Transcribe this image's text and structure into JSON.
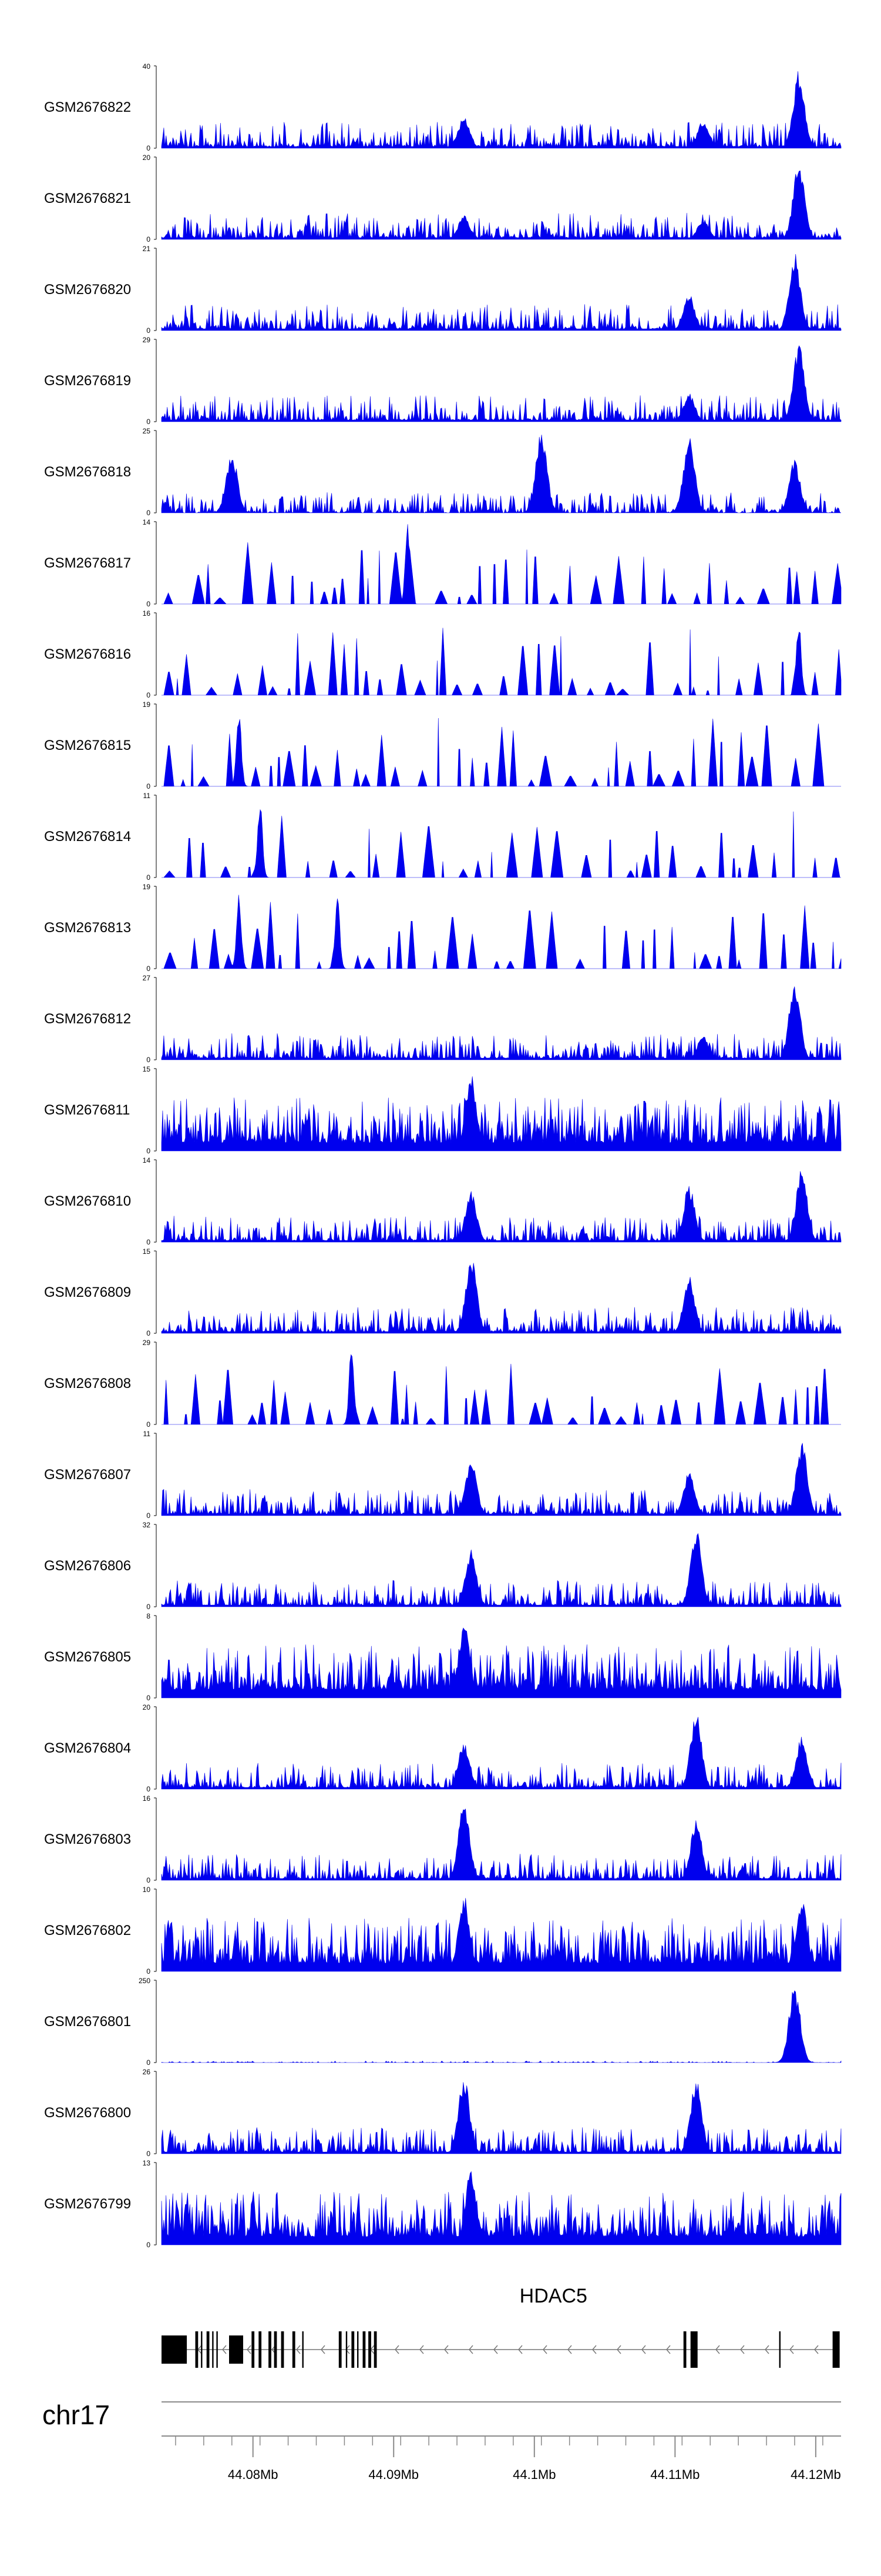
{
  "chart_data": {
    "type": "area",
    "title": "",
    "chromosome": "chr17",
    "x_range_mb": [
      44.0735,
      44.1218
    ],
    "fill_color": "#0000ee",
    "tracks": [
      {
        "name": "GSM2676822",
        "ymax": "40",
        "ymin": "0",
        "pattern": "dense",
        "peaks": [
          [
            44.095,
            0.4
          ],
          [
            44.112,
            0.35
          ],
          [
            44.1188,
            0.95
          ]
        ]
      },
      {
        "name": "GSM2676821",
        "ymax": "20",
        "ymin": "0",
        "pattern": "dense",
        "peaks": [
          [
            44.095,
            0.3
          ],
          [
            44.112,
            0.25
          ],
          [
            44.1188,
            0.95
          ]
        ]
      },
      {
        "name": "GSM2676820",
        "ymax": "21",
        "ymin": "0",
        "pattern": "dense",
        "peaks": [
          [
            44.111,
            0.45
          ],
          [
            44.1185,
            0.95
          ]
        ]
      },
      {
        "name": "GSM2676819",
        "ymax": "29",
        "ymin": "0",
        "pattern": "dense",
        "peaks": [
          [
            44.111,
            0.35
          ],
          [
            44.1188,
            0.95
          ]
        ]
      },
      {
        "name": "GSM2676818",
        "ymax": "25",
        "ymin": "0",
        "pattern": "mixed",
        "peaks": [
          [
            44.0785,
            0.75
          ],
          [
            44.1005,
            1.0
          ],
          [
            44.111,
            0.95
          ],
          [
            44.1185,
            0.65
          ]
        ]
      },
      {
        "name": "GSM2676817",
        "ymax": "14",
        "ymin": "0",
        "pattern": "sparse",
        "peaks": [
          [
            44.091,
            1.0
          ]
        ]
      },
      {
        "name": "GSM2676816",
        "ymax": "16",
        "ymin": "0",
        "pattern": "sparse",
        "peaks": [
          [
            44.1188,
            0.95
          ]
        ]
      },
      {
        "name": "GSM2676815",
        "ymax": "19",
        "ymin": "0",
        "pattern": "sparse",
        "peaks": [
          [
            44.079,
            0.95
          ]
        ]
      },
      {
        "name": "GSM2676814",
        "ymax": "11",
        "ymin": "0",
        "pattern": "sparse",
        "peaks": [
          [
            44.0805,
            0.95
          ]
        ]
      },
      {
        "name": "GSM2676813",
        "ymax": "19",
        "ymin": "0",
        "pattern": "sparse",
        "peaks": [
          [
            44.079,
            0.95
          ],
          [
            44.086,
            0.95
          ]
        ]
      },
      {
        "name": "GSM2676812",
        "ymax": "27",
        "ymin": "0",
        "pattern": "dense",
        "peaks": [
          [
            44.112,
            0.3
          ],
          [
            44.1185,
            0.95
          ]
        ]
      },
      {
        "name": "GSM2676811",
        "ymax": "15",
        "ymin": "0",
        "pattern": "busy",
        "peaks": [
          [
            44.0955,
            0.95
          ]
        ]
      },
      {
        "name": "GSM2676810",
        "ymax": "14",
        "ymin": "0",
        "pattern": "dense",
        "peaks": [
          [
            44.0955,
            0.65
          ],
          [
            44.111,
            0.7
          ],
          [
            44.119,
            0.9
          ]
        ]
      },
      {
        "name": "GSM2676809",
        "ymax": "15",
        "ymin": "0",
        "pattern": "dense",
        "peaks": [
          [
            44.0955,
            0.95
          ],
          [
            44.111,
            0.7
          ]
        ]
      },
      {
        "name": "GSM2676808",
        "ymax": "29",
        "ymin": "0",
        "pattern": "sparse",
        "peaks": [
          [
            44.087,
            0.95
          ]
        ]
      },
      {
        "name": "GSM2676807",
        "ymax": "11",
        "ymin": "0",
        "pattern": "dense",
        "peaks": [
          [
            44.0955,
            0.7
          ],
          [
            44.111,
            0.55
          ],
          [
            44.119,
            0.9
          ]
        ]
      },
      {
        "name": "GSM2676806",
        "ymax": "32",
        "ymin": "0",
        "pattern": "dense",
        "peaks": [
          [
            44.0955,
            0.7
          ],
          [
            44.1115,
            0.95
          ]
        ]
      },
      {
        "name": "GSM2676805",
        "ymax": "8",
        "ymin": "0",
        "pattern": "busy",
        "peaks": [
          [
            44.095,
            0.95
          ]
        ]
      },
      {
        "name": "GSM2676804",
        "ymax": "20",
        "ymin": "0",
        "pattern": "dense",
        "peaks": [
          [
            44.095,
            0.6
          ],
          [
            44.1115,
            0.95
          ],
          [
            44.119,
            0.65
          ]
        ]
      },
      {
        "name": "GSM2676803",
        "ymax": "16",
        "ymin": "0",
        "pattern": "dense",
        "peaks": [
          [
            44.095,
            0.95
          ],
          [
            44.1115,
            0.75
          ]
        ]
      },
      {
        "name": "GSM2676802",
        "ymax": "10",
        "ymin": "0",
        "pattern": "busy",
        "peaks": [
          [
            44.095,
            0.95
          ],
          [
            44.119,
            0.9
          ]
        ]
      },
      {
        "name": "GSM2676801",
        "ymax": "250",
        "ymin": "0",
        "pattern": "flat",
        "peaks": [
          [
            44.1185,
            0.95
          ]
        ]
      },
      {
        "name": "GSM2676800",
        "ymax": "26",
        "ymin": "0",
        "pattern": "dense",
        "peaks": [
          [
            44.095,
            0.95
          ],
          [
            44.1115,
            0.95
          ]
        ]
      },
      {
        "name": "GSM2676799",
        "ymax": "13",
        "ymin": "0",
        "pattern": "busy",
        "peaks": [
          [
            44.0955,
            0.95
          ]
        ]
      }
    ],
    "gene": {
      "name": "HDAC5",
      "strand": "-",
      "start_mb": 44.0735,
      "end_mb": 44.1217,
      "exons_mb": [
        [
          44.0735,
          44.0753
        ],
        [
          44.0759,
          44.0761
        ],
        [
          44.0763,
          44.0764
        ],
        [
          44.0767,
          44.0769
        ],
        [
          44.0771,
          44.0772
        ],
        [
          44.0774,
          44.0775
        ],
        [
          44.0783,
          44.0793
        ],
        [
          44.0799,
          44.0801
        ],
        [
          44.0804,
          44.0806
        ],
        [
          44.0811,
          44.0813
        ],
        [
          44.0815,
          44.0817
        ],
        [
          44.082,
          44.0822
        ],
        [
          44.0828,
          44.083
        ],
        [
          44.0835,
          44.0836
        ],
        [
          44.0861,
          44.0863
        ],
        [
          44.0866,
          44.0867
        ],
        [
          44.087,
          44.0872
        ],
        [
          44.0874,
          44.0875
        ],
        [
          44.0878,
          44.088
        ],
        [
          44.0882,
          44.0884
        ],
        [
          44.0886,
          44.0888
        ],
        [
          44.1106,
          44.1108
        ],
        [
          44.1111,
          44.1116
        ],
        [
          44.1174,
          44.1175
        ],
        [
          44.1212,
          44.1217
        ]
      ]
    },
    "axis": {
      "ticks_mb": [
        44.0745,
        44.0765,
        44.0785,
        44.0805,
        44.0825,
        44.0845,
        44.0865,
        44.0885,
        44.0905,
        44.0925,
        44.0945,
        44.0965,
        44.0985,
        44.1005,
        44.1025,
        44.1045,
        44.1065,
        44.1085,
        44.1105,
        44.1125,
        44.1145,
        44.1165,
        44.1185,
        44.1205
      ],
      "labels": [
        {
          "mb": 44.08,
          "text": "44.08Mb"
        },
        {
          "mb": 44.09,
          "text": "44.09Mb"
        },
        {
          "mb": 44.1,
          "text": "44.1Mb"
        },
        {
          "mb": 44.11,
          "text": "44.11Mb"
        },
        {
          "mb": 44.12,
          "text": "44.12Mb"
        }
      ]
    }
  }
}
